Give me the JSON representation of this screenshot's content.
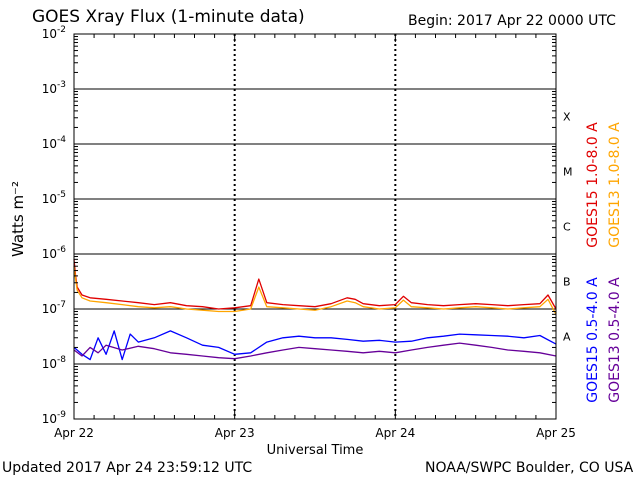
{
  "header": {
    "title": "GOES Xray Flux (1-minute data)",
    "begin": "Begin:  2017 Apr 22 0000 UTC"
  },
  "footer": {
    "updated": "Updated 2017 Apr 24 23:59:12 UTC",
    "credit": "NOAA/SWPC Boulder, CO USA"
  },
  "chart_data": {
    "type": "line",
    "title": "GOES Xray Flux (1-minute data)",
    "xlabel": "Universal Time",
    "ylabel": "Watts m⁻²",
    "yscale": "log",
    "ylim": [
      1e-09,
      0.01
    ],
    "xlim": [
      0,
      3
    ],
    "x_ticks": [
      {
        "x": 0,
        "label": "Apr 22"
      },
      {
        "x": 1,
        "label": "Apr 23"
      },
      {
        "x": 2,
        "label": "Apr 24"
      },
      {
        "x": 3,
        "label": "Apr 25"
      }
    ],
    "y_ticks": [
      {
        "exp": -2,
        "base": "10",
        "sup": "-2"
      },
      {
        "exp": -3,
        "base": "10",
        "sup": "-3"
      },
      {
        "exp": -4,
        "base": "10",
        "sup": "-4"
      },
      {
        "exp": -5,
        "base": "10",
        "sup": "-5"
      },
      {
        "exp": -6,
        "base": "10",
        "sup": "-6"
      },
      {
        "exp": -7,
        "base": "10",
        "sup": "-7"
      },
      {
        "exp": -8,
        "base": "10",
        "sup": "-8"
      },
      {
        "exp": -9,
        "base": "10",
        "sup": "-9"
      }
    ],
    "flare_classes": [
      {
        "label": "X",
        "exp": -4
      },
      {
        "label": "M",
        "exp": -5
      },
      {
        "label": "C",
        "exp": -6
      },
      {
        "label": "B",
        "exp": -7
      },
      {
        "label": "A",
        "exp": -8
      }
    ],
    "grid": true,
    "legend_position": "right-vertical",
    "series": [
      {
        "name": "GOES15 1.0-8.0 A",
        "color": "#e00000",
        "x": [
          0,
          0.01,
          0.02,
          0.05,
          0.1,
          0.2,
          0.3,
          0.4,
          0.5,
          0.6,
          0.7,
          0.8,
          0.9,
          1.0,
          1.1,
          1.15,
          1.2,
          1.3,
          1.4,
          1.5,
          1.6,
          1.7,
          1.75,
          1.8,
          1.9,
          2.0,
          2.05,
          2.1,
          2.2,
          2.3,
          2.4,
          2.5,
          2.6,
          2.7,
          2.8,
          2.9,
          2.95,
          3.0
        ],
        "y": [
          8e-07,
          4e-07,
          2.5e-07,
          1.8e-07,
          1.6e-07,
          1.5e-07,
          1.4e-07,
          1.3e-07,
          1.2e-07,
          1.3e-07,
          1.15e-07,
          1.1e-07,
          1e-07,
          1.05e-07,
          1.15e-07,
          3.5e-07,
          1.3e-07,
          1.2e-07,
          1.15e-07,
          1.1e-07,
          1.25e-07,
          1.6e-07,
          1.5e-07,
          1.25e-07,
          1.15e-07,
          1.2e-07,
          1.7e-07,
          1.3e-07,
          1.2e-07,
          1.15e-07,
          1.2e-07,
          1.25e-07,
          1.2e-07,
          1.15e-07,
          1.2e-07,
          1.25e-07,
          1.8e-07,
          1e-07
        ]
      },
      {
        "name": "GOES13 1.0-8.0 A",
        "color": "#ffa500",
        "x": [
          0,
          0.01,
          0.02,
          0.05,
          0.1,
          0.2,
          0.3,
          0.4,
          0.5,
          0.6,
          0.7,
          0.8,
          0.9,
          1.0,
          1.1,
          1.15,
          1.2,
          1.3,
          1.4,
          1.5,
          1.6,
          1.7,
          1.75,
          1.8,
          1.9,
          2.0,
          2.05,
          2.1,
          2.2,
          2.3,
          2.4,
          2.5,
          2.6,
          2.7,
          2.8,
          2.9,
          2.95,
          3.0
        ],
        "y": [
          6e-07,
          3.5e-07,
          2.2e-07,
          1.6e-07,
          1.4e-07,
          1.3e-07,
          1.2e-07,
          1.1e-07,
          1.05e-07,
          1.1e-07,
          1e-07,
          9.5e-08,
          9e-08,
          9e-08,
          1e-07,
          2.5e-07,
          1.1e-07,
          1.05e-07,
          1e-07,
          9.5e-08,
          1.1e-07,
          1.4e-07,
          1.3e-07,
          1.1e-07,
          1e-07,
          1.05e-07,
          1.45e-07,
          1.1e-07,
          1.05e-07,
          1e-07,
          1.05e-07,
          1.1e-07,
          1.05e-07,
          1e-07,
          1.05e-07,
          1.1e-07,
          1.5e-07,
          8e-08
        ]
      },
      {
        "name": "GOES15 0.5-4.0 A",
        "color": "#0000ff",
        "x": [
          0,
          0.05,
          0.1,
          0.15,
          0.2,
          0.25,
          0.3,
          0.35,
          0.4,
          0.5,
          0.6,
          0.7,
          0.8,
          0.9,
          1.0,
          1.1,
          1.2,
          1.3,
          1.4,
          1.5,
          1.6,
          1.7,
          1.8,
          1.9,
          2.0,
          2.1,
          2.2,
          2.3,
          2.4,
          2.5,
          2.6,
          2.7,
          2.8,
          2.9,
          3.0
        ],
        "y": [
          2e-08,
          1.5e-08,
          1.2e-08,
          3e-08,
          1.5e-08,
          4e-08,
          1.2e-08,
          3.5e-08,
          2.5e-08,
          3e-08,
          4e-08,
          3e-08,
          2.2e-08,
          2e-08,
          1.5e-08,
          1.6e-08,
          2.5e-08,
          3e-08,
          3.2e-08,
          3e-08,
          3e-08,
          2.8e-08,
          2.6e-08,
          2.7e-08,
          2.5e-08,
          2.6e-08,
          3e-08,
          3.2e-08,
          3.5e-08,
          3.4e-08,
          3.3e-08,
          3.2e-08,
          3e-08,
          3.3e-08,
          2.3e-08
        ]
      },
      {
        "name": "GOES13 0.5-4.0 A",
        "color": "#660099",
        "x": [
          0,
          0.05,
          0.1,
          0.15,
          0.2,
          0.3,
          0.4,
          0.5,
          0.6,
          0.7,
          0.8,
          0.9,
          1.0,
          1.1,
          1.2,
          1.3,
          1.4,
          1.5,
          1.6,
          1.7,
          1.8,
          1.9,
          2.0,
          2.1,
          2.2,
          2.3,
          2.4,
          2.5,
          2.6,
          2.7,
          2.8,
          2.9,
          3.0
        ],
        "y": [
          1.8e-08,
          1.4e-08,
          2e-08,
          1.6e-08,
          2.2e-08,
          1.8e-08,
          2.1e-08,
          1.9e-08,
          1.6e-08,
          1.5e-08,
          1.4e-08,
          1.3e-08,
          1.25e-08,
          1.4e-08,
          1.6e-08,
          1.8e-08,
          2e-08,
          1.9e-08,
          1.8e-08,
          1.7e-08,
          1.6e-08,
          1.7e-08,
          1.6e-08,
          1.8e-08,
          2e-08,
          2.2e-08,
          2.4e-08,
          2.2e-08,
          2e-08,
          1.8e-08,
          1.7e-08,
          1.6e-08,
          1.4e-08
        ]
      }
    ]
  }
}
